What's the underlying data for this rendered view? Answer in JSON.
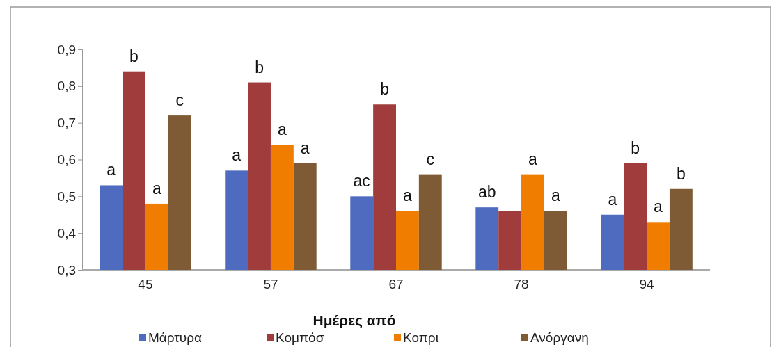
{
  "chart_data": {
    "type": "bar",
    "xlabel": "Ημέρες από",
    "categories": [
      "45",
      "57",
      "67",
      "78",
      "94"
    ],
    "series": [
      {
        "name": "Μάρτυρα",
        "color": "#4f6bbf",
        "values": [
          0.53,
          0.57,
          0.5,
          0.47,
          0.45
        ]
      },
      {
        "name": "Κομπόσ",
        "color": "#a03c3c",
        "values": [
          0.84,
          0.81,
          0.75,
          0.46,
          0.59
        ]
      },
      {
        "name": "Κοπρι",
        "color": "#f07d00",
        "values": [
          0.48,
          0.64,
          0.46,
          0.56,
          0.43
        ]
      },
      {
        "name": "Ανόργανη",
        "color": "#7e5a35",
        "values": [
          0.72,
          0.59,
          0.56,
          0.46,
          0.52
        ]
      }
    ],
    "ylim": [
      0.3,
      0.9
    ],
    "yticks": [
      {
        "value": 0.3,
        "label": "0,3"
      },
      {
        "value": 0.4,
        "label": "0,4"
      },
      {
        "value": 0.5,
        "label": "0,5"
      },
      {
        "value": 0.6,
        "label": "0,6"
      },
      {
        "value": 0.7,
        "label": "0,7"
      },
      {
        "value": 0.8,
        "label": "0,8"
      },
      {
        "value": 0.9,
        "label": "0,9"
      }
    ],
    "legend": "bottom",
    "annotations": [
      {
        "text": "a",
        "x": "45",
        "y": 0.53
      },
      {
        "text": "b",
        "x": "45",
        "y": 0.84
      },
      {
        "text": "a",
        "x": "45",
        "y": 0.48
      },
      {
        "text": "c",
        "x": "45",
        "y": 0.72
      },
      {
        "text": "a",
        "x": "57",
        "y": 0.57
      },
      {
        "text": "b",
        "x": "57",
        "y": 0.81
      },
      {
        "text": "a",
        "x": "57",
        "y": 0.64
      },
      {
        "text": "a",
        "x": "57",
        "y": 0.59
      },
      {
        "text": "ac",
        "x": "67",
        "y": 0.5
      },
      {
        "text": "b",
        "x": "67",
        "y": 0.75
      },
      {
        "text": "a",
        "x": "67",
        "y": 0.46
      },
      {
        "text": "c",
        "x": "67",
        "y": 0.56
      },
      {
        "text": "ab",
        "x": "78",
        "y": 0.47
      },
      {
        "text": "a",
        "x": "78",
        "y": 0.56
      },
      {
        "text": "a",
        "x": "78",
        "y": 0.46
      },
      {
        "text": "a",
        "x": "94",
        "y": 0.45
      },
      {
        "text": "b",
        "x": "94",
        "y": 0.59
      },
      {
        "text": "a",
        "x": "94",
        "y": 0.43
      },
      {
        "text": "b",
        "x": "94",
        "y": 0.52
      }
    ]
  }
}
